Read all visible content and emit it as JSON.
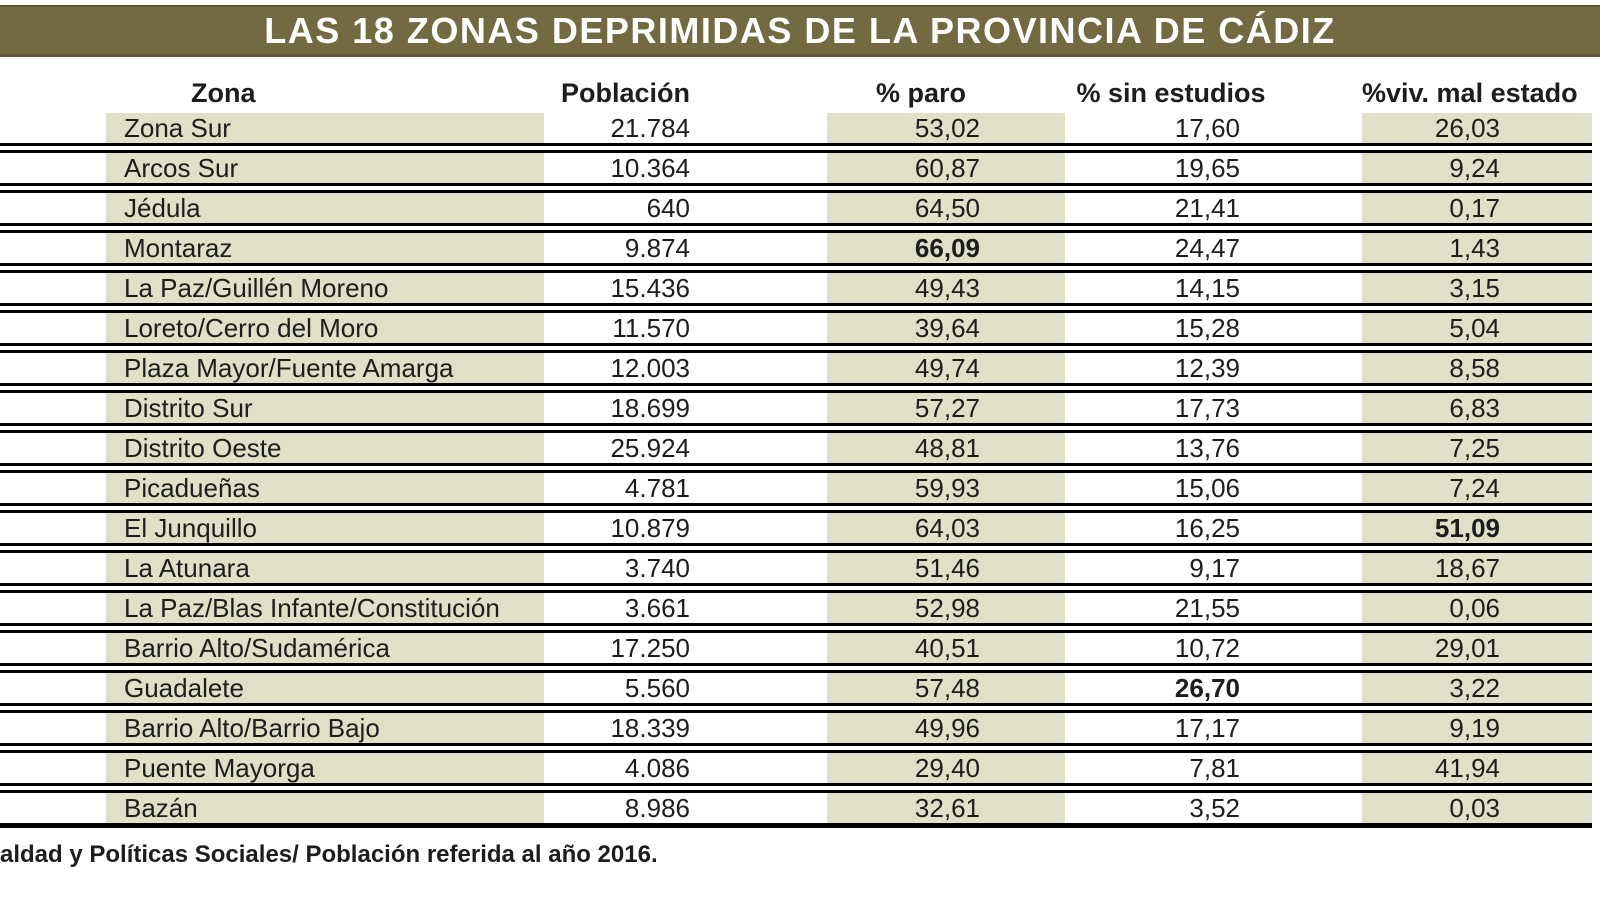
{
  "chart_data": {
    "type": "table",
    "title": "LAS 18 ZONAS DEPRIMIDAS DE LA PROVINCIA DE CÁDIZ",
    "columns": [
      "Zona",
      "Población",
      "% paro",
      "% sin estudios",
      "%viv. mal estado"
    ],
    "rows": [
      {
        "zona": "Zona Sur",
        "poblacion": "21.784",
        "paro": "53,02",
        "sin_estudios": "17,60",
        "viv_mal_estado": "26,03"
      },
      {
        "zona": "Arcos Sur",
        "poblacion": "10.364",
        "paro": "60,87",
        "sin_estudios": "19,65",
        "viv_mal_estado": "9,24"
      },
      {
        "zona": "Jédula",
        "poblacion": "640",
        "paro": "64,50",
        "sin_estudios": "21,41",
        "viv_mal_estado": "0,17"
      },
      {
        "zona": "Montaraz",
        "poblacion": "9.874",
        "paro": "66,09",
        "sin_estudios": "24,47",
        "viv_mal_estado": "1,43",
        "bold": "paro"
      },
      {
        "zona": "La Paz/Guillén Moreno",
        "poblacion": "15.436",
        "paro": "49,43",
        "sin_estudios": "14,15",
        "viv_mal_estado": "3,15"
      },
      {
        "zona": "Loreto/Cerro del Moro",
        "poblacion": "11.570",
        "paro": "39,64",
        "sin_estudios": "15,28",
        "viv_mal_estado": "5,04"
      },
      {
        "zona": "Plaza Mayor/Fuente Amarga",
        "poblacion": "12.003",
        "paro": "49,74",
        "sin_estudios": "12,39",
        "viv_mal_estado": "8,58"
      },
      {
        "zona": "Distrito Sur",
        "poblacion": "18.699",
        "paro": "57,27",
        "sin_estudios": "17,73",
        "viv_mal_estado": "6,83"
      },
      {
        "zona": "Distrito Oeste",
        "poblacion": "25.924",
        "paro": "48,81",
        "sin_estudios": "13,76",
        "viv_mal_estado": "7,25"
      },
      {
        "zona": "Picadueñas",
        "poblacion": "4.781",
        "paro": "59,93",
        "sin_estudios": "15,06",
        "viv_mal_estado": "7,24"
      },
      {
        "zona": "El Junquillo",
        "poblacion": "10.879",
        "paro": "64,03",
        "sin_estudios": "16,25",
        "viv_mal_estado": "51,09",
        "bold": "viv_mal_estado"
      },
      {
        "zona": "La Atunara",
        "poblacion": "3.740",
        "paro": "51,46",
        "sin_estudios": "9,17",
        "viv_mal_estado": "18,67"
      },
      {
        "zona": "La Paz/Blas Infante/Constitución",
        "poblacion": "3.661",
        "paro": "52,98",
        "sin_estudios": "21,55",
        "viv_mal_estado": "0,06"
      },
      {
        "zona": "Barrio Alto/Sudamérica",
        "poblacion": "17.250",
        "paro": "40,51",
        "sin_estudios": "10,72",
        "viv_mal_estado": "29,01"
      },
      {
        "zona": "Guadalete",
        "poblacion": "5.560",
        "paro": "57,48",
        "sin_estudios": "26,70",
        "viv_mal_estado": "3,22",
        "bold": "sin_estudios"
      },
      {
        "zona": "Barrio Alto/Barrio Bajo",
        "poblacion": "18.339",
        "paro": "49,96",
        "sin_estudios": "17,17",
        "viv_mal_estado": "9,19"
      },
      {
        "zona": "Puente Mayorga",
        "poblacion": "4.086",
        "paro": "29,40",
        "sin_estudios": "7,81",
        "viv_mal_estado": "41,94"
      },
      {
        "zona": "Bazán",
        "poblacion": "8.986",
        "paro": "32,61",
        "sin_estudios": "3,52",
        "viv_mal_estado": "0,03"
      }
    ]
  },
  "footer": {
    "source_note": "aldad y Políticas Sociales/ Población referida al año 2016."
  },
  "colors": {
    "title_bar": "#736a42",
    "title_text": "#ffffff",
    "row_shade": "#dfe0c7",
    "line": "#000000",
    "text": "#1d1d1b"
  }
}
